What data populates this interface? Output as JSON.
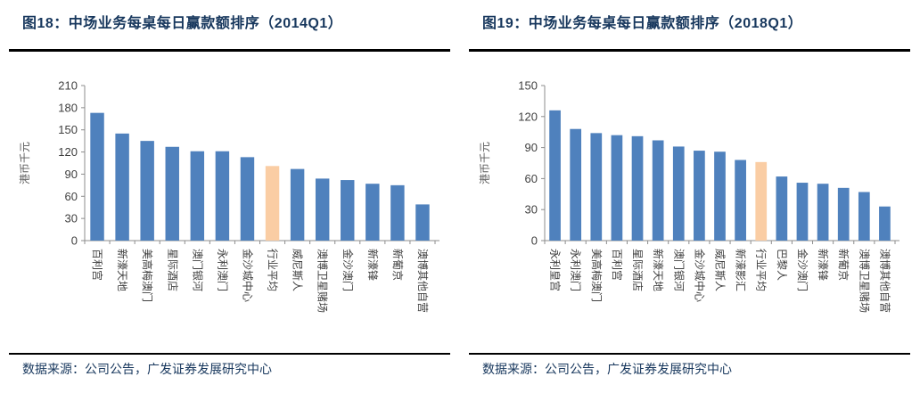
{
  "colors": {
    "bar": "#4F81BD",
    "bar_highlight": "#FACDA4",
    "title_text": "#17375D",
    "rule": "#000000",
    "axis": "#8C8C8C",
    "tick_text": "#3F3F3F",
    "axis_title": "#595959"
  },
  "source_notes": [
    "数据来源：公司公告，广发证券发展研究中心",
    "数据来源：公司公告，广发证券发展研究中心"
  ],
  "chart_data": [
    {
      "type": "bar",
      "title": "图18：中场业务每桌每日赢款额排序（2014Q1）",
      "xlabel": "",
      "ylabel": "港币千元",
      "ylim": [
        0,
        210
      ],
      "ytick_step": 30,
      "grid": false,
      "legend": false,
      "highlight_category": "行业平均",
      "categories": [
        "百利宫",
        "新濠天地",
        "美高梅澳门",
        "星际酒店",
        "澳门银河",
        "永利澳门",
        "金沙城中心",
        "行业平均",
        "威尼斯人",
        "澳博卫星赌场",
        "金沙澳门",
        "新濠锋",
        "新葡京",
        "澳博其他自营"
      ],
      "values": [
        173,
        145,
        135,
        127,
        121,
        121,
        113,
        101,
        97,
        84,
        82,
        77,
        75,
        49
      ]
    },
    {
      "type": "bar",
      "title": "图19：中场业务每桌每日赢款额排序（2018Q1）",
      "xlabel": "",
      "ylabel": "港币千元",
      "ylim": [
        0,
        150
      ],
      "ytick_step": 30,
      "grid": false,
      "legend": false,
      "highlight_category": "行业平均",
      "categories": [
        "永利皇宫",
        "永利澳门",
        "美高梅澳门",
        "百利宫",
        "星际酒店",
        "新濠天地",
        "澳门银河",
        "金沙城中心",
        "威尼斯人",
        "新濠影汇",
        "行业平均",
        "巴黎人",
        "金沙澳门",
        "新濠锋",
        "新葡京",
        "澳博卫星赌场",
        "澳博其他自营"
      ],
      "values": [
        126,
        108,
        104,
        102,
        101,
        97,
        91,
        87,
        86,
        78,
        76,
        62,
        56,
        55,
        51,
        47,
        33
      ]
    }
  ]
}
